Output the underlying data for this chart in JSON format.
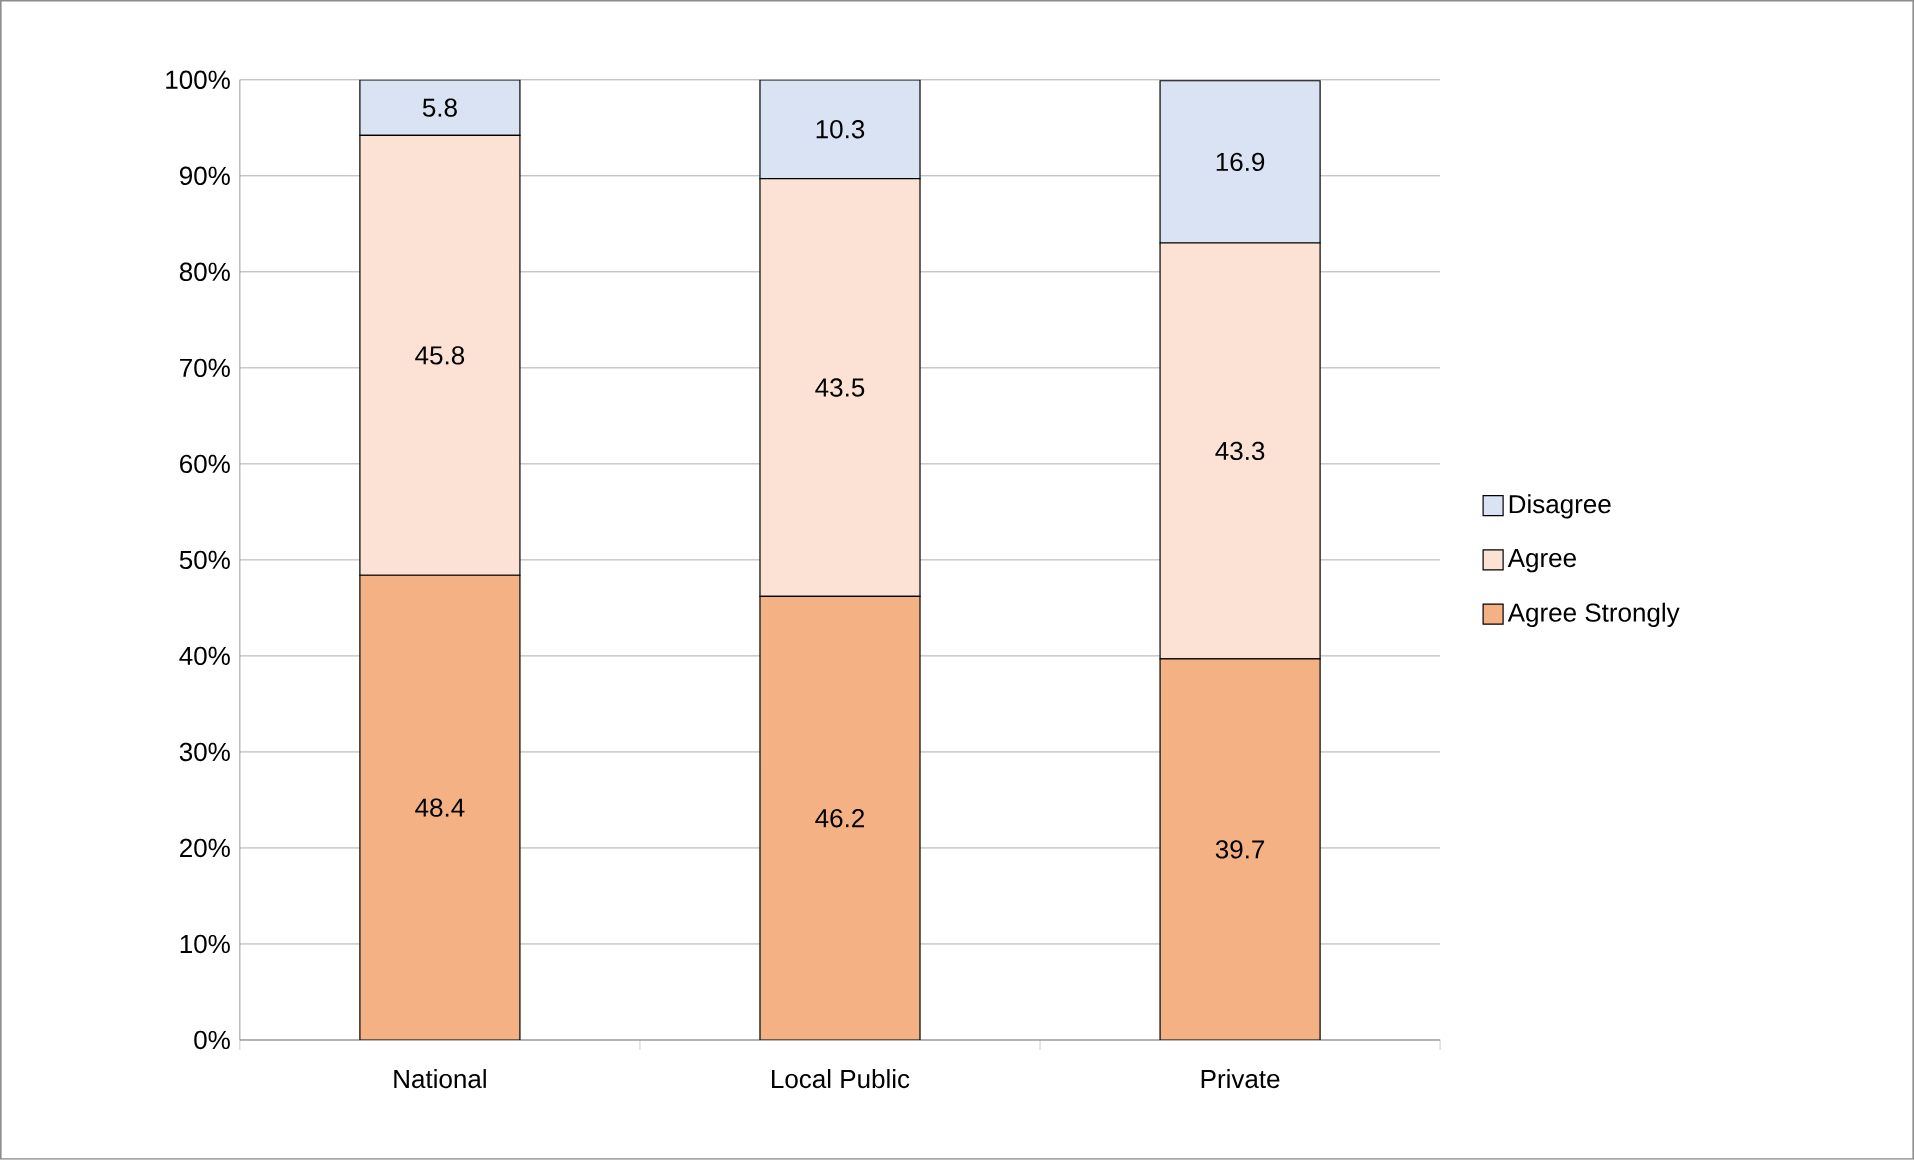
{
  "chart_data": {
    "type": "bar",
    "stacked": true,
    "categories": [
      "National",
      "Local Public",
      "Private"
    ],
    "series": [
      {
        "name": "Agree Strongly",
        "color": "#f4b183",
        "values": [
          48.4,
          46.2,
          39.7
        ]
      },
      {
        "name": "Agree",
        "color": "#fbe2d5",
        "values": [
          45.8,
          43.5,
          43.3
        ]
      },
      {
        "name": "Disagree",
        "color": "#dae3f3",
        "values": [
          5.8,
          10.3,
          16.9
        ]
      }
    ],
    "ylim": [
      0,
      100
    ],
    "yticks": [
      {
        "value": 0,
        "label": "0%"
      },
      {
        "value": 10,
        "label": "10%"
      },
      {
        "value": 20,
        "label": "20%"
      },
      {
        "value": 30,
        "label": "30%"
      },
      {
        "value": 40,
        "label": "40%"
      },
      {
        "value": 50,
        "label": "50%"
      },
      {
        "value": 60,
        "label": "60%"
      },
      {
        "value": 70,
        "label": "70%"
      },
      {
        "value": 80,
        "label": "80%"
      },
      {
        "value": 90,
        "label": "90%"
      },
      {
        "value": 100,
        "label": "100%"
      }
    ],
    "grid": "y",
    "legend": "right",
    "data_labels": true
  }
}
